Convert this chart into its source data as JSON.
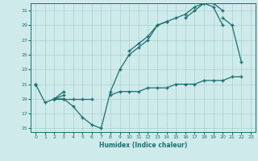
{
  "xlabel": "Humidex (Indice chaleur)",
  "color": "#1a7070",
  "bg_color": "#ceeaea",
  "grid_color": "#aacfcf",
  "ylim": [
    14.5,
    32
  ],
  "xlim": [
    -0.5,
    23.5
  ],
  "yticks": [
    15,
    17,
    19,
    21,
    23,
    25,
    27,
    29,
    31
  ],
  "xticks": [
    0,
    1,
    2,
    3,
    4,
    5,
    6,
    7,
    8,
    9,
    10,
    11,
    12,
    13,
    14,
    15,
    16,
    17,
    18,
    19,
    20,
    21,
    22,
    23
  ],
  "x": [
    0,
    1,
    2,
    3,
    4,
    5,
    6,
    7,
    8,
    9,
    10,
    11,
    12,
    13,
    14,
    15,
    16,
    17,
    18,
    19,
    20,
    21,
    22,
    23
  ],
  "line1_y": [
    21,
    18.5,
    19,
    19,
    18,
    16.5,
    15.5,
    15,
    20,
    23,
    25,
    26,
    27,
    29,
    29.5,
    30,
    30.5,
    31.5,
    32,
    31.5,
    29,
    null,
    null,
    null
  ],
  "line2_y": [
    21,
    null,
    19,
    19.5,
    null,
    null,
    null,
    null,
    null,
    null,
    25.5,
    26.5,
    27.5,
    29,
    29.5,
    null,
    30,
    31,
    32,
    32,
    31,
    null,
    null,
    null
  ],
  "line3_y": [
    21,
    null,
    19,
    20,
    null,
    null,
    null,
    null,
    null,
    null,
    null,
    null,
    null,
    null,
    null,
    null,
    null,
    null,
    null,
    null,
    30,
    29,
    24,
    null
  ],
  "line4_y": [
    null,
    null,
    19,
    19,
    19,
    19,
    19,
    null,
    19.5,
    20,
    20,
    20,
    20.5,
    20.5,
    20.5,
    21,
    21,
    21,
    21.5,
    21.5,
    21.5,
    22,
    22,
    null
  ]
}
